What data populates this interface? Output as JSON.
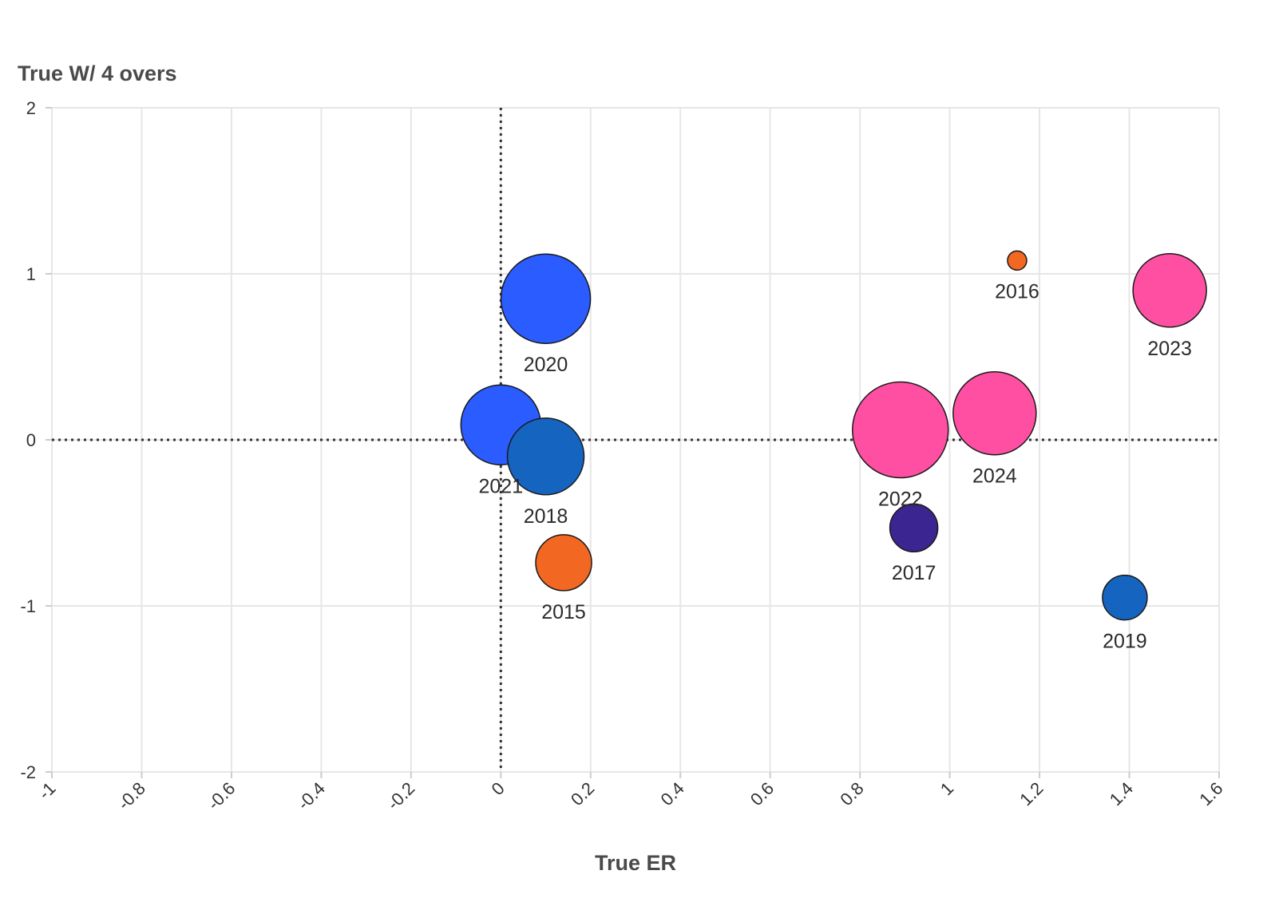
{
  "chart_data": {
    "type": "scatter",
    "title": "",
    "xlabel": "True ER",
    "ylabel": "True W/ 4 overs",
    "xlim": [
      -1,
      1.6
    ],
    "ylim": [
      -2,
      2
    ],
    "x_ticks": [
      "-1",
      "-0.8",
      "-0.6",
      "-0.4",
      "-0.2",
      "0",
      "0.2",
      "0.4",
      "0.6",
      "0.8",
      "1",
      "1.2",
      "1.4",
      "1.6"
    ],
    "y_ticks": [
      "2",
      "1",
      "0",
      "-1",
      "-2"
    ],
    "grid": true,
    "reference_lines": {
      "x": 0,
      "y": 0
    },
    "points": [
      {
        "label": "2020",
        "x": 0.1,
        "y": 0.85,
        "size": 56,
        "color": "#2a5cff"
      },
      {
        "label": "2021",
        "x": 0.0,
        "y": 0.09,
        "size": 50,
        "color": "#2a5cff"
      },
      {
        "label": "2018",
        "x": 0.1,
        "y": -0.1,
        "size": 48,
        "color": "#1565c0"
      },
      {
        "label": "2015",
        "x": 0.14,
        "y": -0.74,
        "size": 35,
        "color": "#f26722"
      },
      {
        "label": "2022",
        "x": 0.89,
        "y": 0.06,
        "size": 60,
        "color": "#ff4fa3"
      },
      {
        "label": "2024",
        "x": 1.1,
        "y": 0.16,
        "size": 52,
        "color": "#ff4fa3"
      },
      {
        "label": "2017",
        "x": 0.92,
        "y": -0.53,
        "size": 30,
        "color": "#3b2590"
      },
      {
        "label": "2016",
        "x": 1.15,
        "y": 1.08,
        "size": 12,
        "color": "#f26722"
      },
      {
        "label": "2023",
        "x": 1.49,
        "y": 0.9,
        "size": 46,
        "color": "#ff4fa3"
      },
      {
        "label": "2019",
        "x": 1.39,
        "y": -0.95,
        "size": 28,
        "color": "#1565c0"
      }
    ]
  }
}
